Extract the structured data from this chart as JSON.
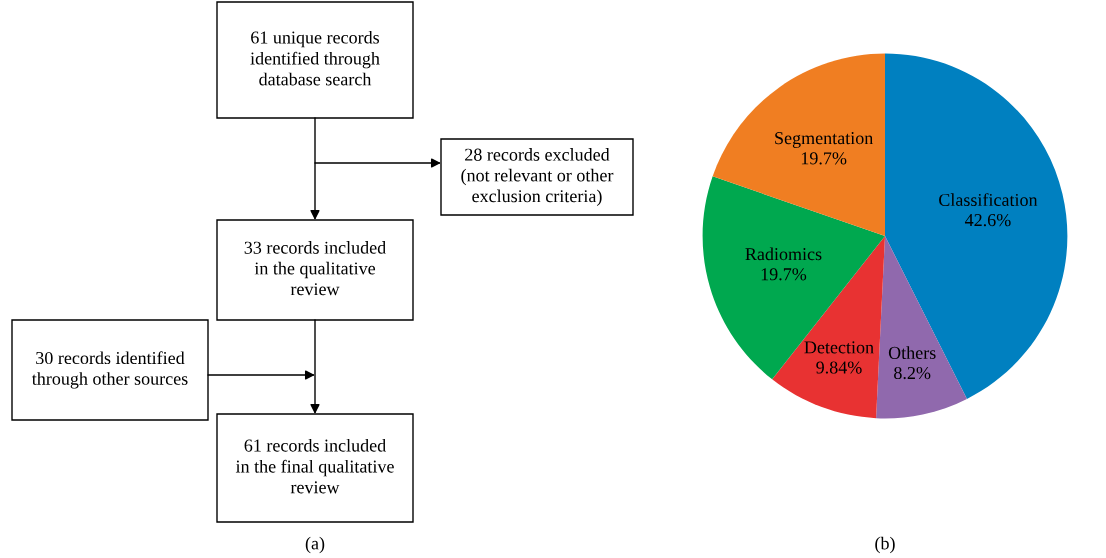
{
  "chart_data": [
    {
      "type": "other",
      "annotations": [
        "61 unique records\nidentified through\ndatabase search",
        "28 records excluded\n(not relevant or other\nexclusion criteria)",
        "33 records included\nin the qualitative\nreview",
        "30 records identified\nthrough other sources",
        "61 records included\nin the final qualitative\nreview",
        "(a)"
      ]
    },
    {
      "type": "pie",
      "categories": [
        "Classification",
        "Others",
        "Detection",
        "Radiomics",
        "Segmentation"
      ],
      "values": [
        42.6,
        8.2,
        9.84,
        19.7,
        19.7
      ],
      "colors": [
        "#0080c0",
        "#9069ad",
        "#e83232",
        "#00a84f",
        "#f07e22"
      ],
      "value_labels": [
        "42.6%",
        "8.2%",
        "9.84%",
        "19.7%",
        "19.7%"
      ],
      "annotations": [
        "(b)"
      ]
    }
  ]
}
